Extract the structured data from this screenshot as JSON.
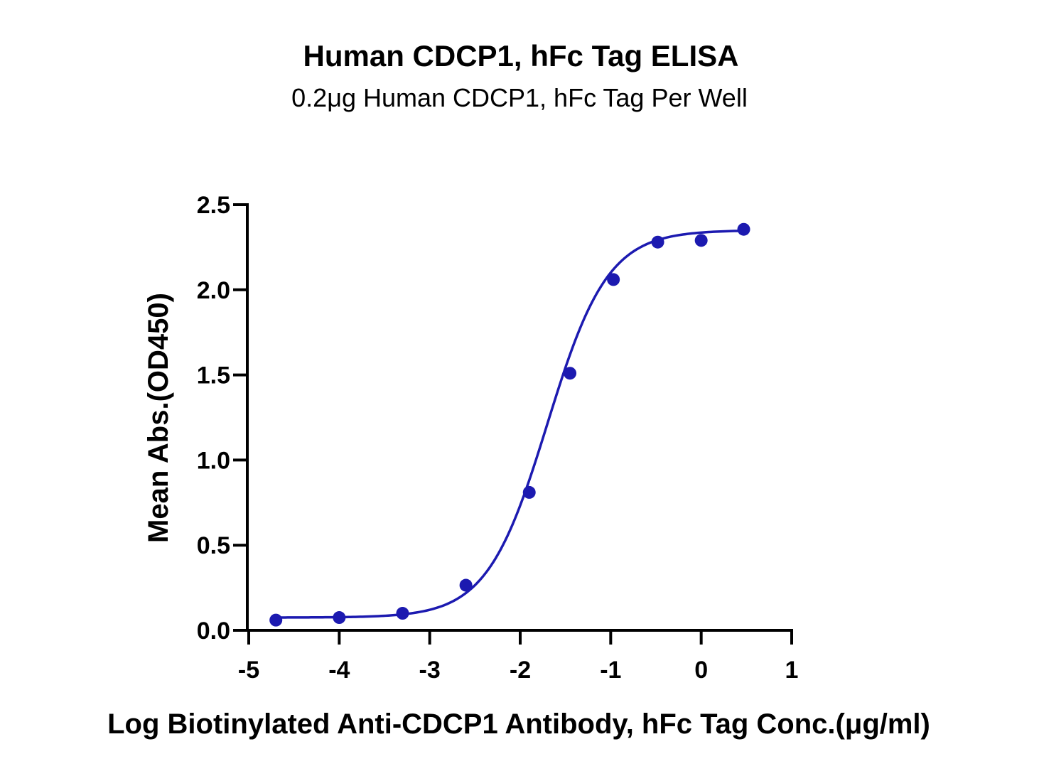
{
  "chart_data": {
    "type": "scatter",
    "title": "Human CDCP1, hFc Tag ELISA",
    "subtitle": "0.2μg Human CDCP1, hFc Tag Per Well",
    "xlabel": "Log Biotinylated Anti-CDCP1 Antibody, hFc Tag Conc.(μg/ml)",
    "ylabel": "Mean Abs.(OD450)",
    "xlim": [
      -5,
      1
    ],
    "ylim": [
      0,
      2.5
    ],
    "x_ticks": [
      "-5",
      "-4",
      "-3",
      "-2",
      "-1",
      "0",
      "1"
    ],
    "y_ticks": [
      "0.0",
      "0.5",
      "1.0",
      "1.5",
      "2.0",
      "2.5"
    ],
    "grid": false,
    "series": [
      {
        "color": "#1c1ab0",
        "points": [
          {
            "x": -4.7,
            "y": 0.06
          },
          {
            "x": -4.0,
            "y": 0.075
          },
          {
            "x": -3.3,
            "y": 0.1
          },
          {
            "x": -2.6,
            "y": 0.265
          },
          {
            "x": -1.9,
            "y": 0.81
          },
          {
            "x": -1.45,
            "y": 1.51
          },
          {
            "x": -0.97,
            "y": 2.06
          },
          {
            "x": -0.48,
            "y": 2.28
          },
          {
            "x": 0.0,
            "y": 2.29
          },
          {
            "x": 0.47,
            "y": 2.355
          }
        ],
        "fit": {
          "model": "4PL",
          "bottom": 0.075,
          "top": 2.35,
          "log_ec50": -1.7,
          "hill_slope": 1.3,
          "x_range": [
            -4.7,
            0.47
          ]
        }
      }
    ]
  }
}
